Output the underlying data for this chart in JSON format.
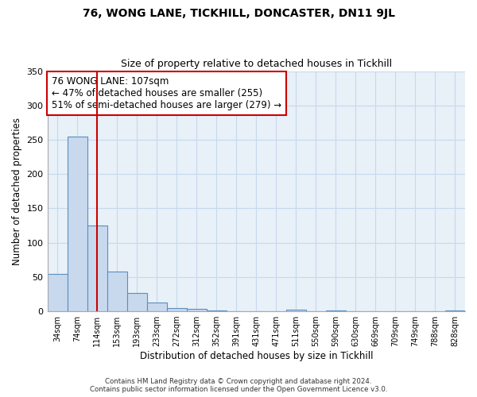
{
  "title": "76, WONG LANE, TICKHILL, DONCASTER, DN11 9JL",
  "subtitle": "Size of property relative to detached houses in Tickhill",
  "xlabel": "Distribution of detached houses by size in Tickhill",
  "ylabel": "Number of detached properties",
  "bar_labels": [
    "34sqm",
    "74sqm",
    "114sqm",
    "153sqm",
    "193sqm",
    "233sqm",
    "272sqm",
    "312sqm",
    "352sqm",
    "391sqm",
    "431sqm",
    "471sqm",
    "511sqm",
    "550sqm",
    "590sqm",
    "630sqm",
    "669sqm",
    "709sqm",
    "749sqm",
    "788sqm",
    "828sqm"
  ],
  "bar_values": [
    55,
    255,
    125,
    58,
    27,
    13,
    5,
    4,
    1,
    0,
    0,
    0,
    2,
    0,
    1,
    0,
    0,
    0,
    0,
    0,
    1
  ],
  "bar_color": "#c8d9ee",
  "bar_edge_color": "#5a8fc0",
  "vline_x": 2,
  "vline_color": "#cc0000",
  "annotation_text": "76 WONG LANE: 107sqm\n← 47% of detached houses are smaller (255)\n51% of semi-detached houses are larger (279) →",
  "annotation_box_color": "#ffffff",
  "annotation_box_edge": "#cc0000",
  "ylim": [
    0,
    350
  ],
  "yticks": [
    0,
    50,
    100,
    150,
    200,
    250,
    300,
    350
  ],
  "footnote": "Contains HM Land Registry data © Crown copyright and database right 2024.\nContains public sector information licensed under the Open Government Licence v3.0.",
  "title_fontsize": 10,
  "subtitle_fontsize": 9,
  "xlabel_fontsize": 8.5,
  "ylabel_fontsize": 8.5,
  "grid_color": "#c8d8ee",
  "bg_color": "#e8f0f8"
}
